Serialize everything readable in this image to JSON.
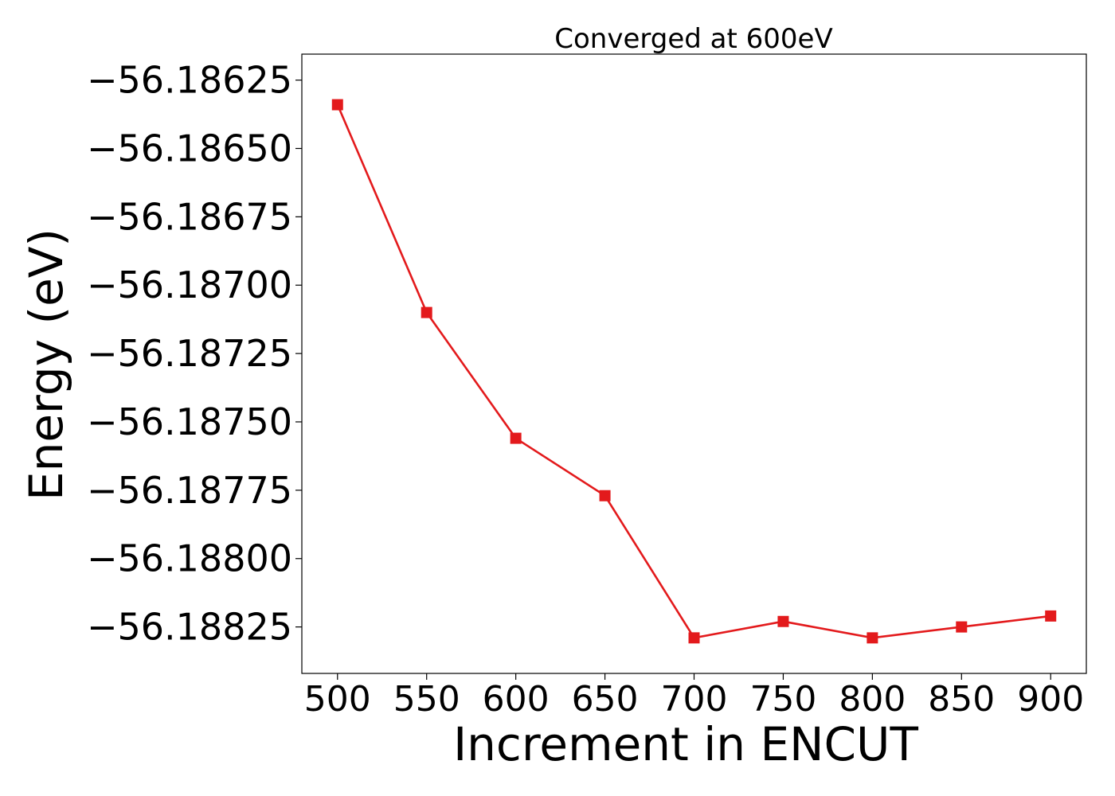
{
  "chart_data": {
    "type": "line",
    "title": "Converged at 600eV",
    "xlabel": "Increment in ENCUT",
    "ylabel": "Energy (eV)",
    "x": [
      500,
      550,
      600,
      650,
      700,
      750,
      800,
      850,
      900
    ],
    "series": [
      {
        "values": [
          -56.18634,
          -56.1871,
          -56.18756,
          -56.18777,
          -56.18829,
          -56.18823,
          -56.18829,
          -56.18825,
          -56.18821
        ],
        "color": "#e31a1c",
        "marker": "square"
      }
    ],
    "xlim": [
      480,
      920
    ],
    "ylim": [
      -56.18842,
      -56.186155
    ],
    "xticks": [
      500,
      550,
      600,
      650,
      700,
      750,
      800,
      850,
      900
    ],
    "xtick_labels": [
      "500",
      "550",
      "600",
      "650",
      "700",
      "750",
      "800",
      "850",
      "900"
    ],
    "yticks": [
      -56.18625,
      -56.1865,
      -56.18675,
      -56.187,
      -56.18725,
      -56.1875,
      -56.18775,
      -56.188,
      -56.18825
    ],
    "ytick_labels": [
      "−56.18625",
      "−56.18650",
      "−56.18675",
      "−56.18700",
      "−56.18725",
      "−56.18750",
      "−56.18775",
      "−56.18800",
      "−56.18825"
    ],
    "grid": false,
    "legend": "none"
  }
}
